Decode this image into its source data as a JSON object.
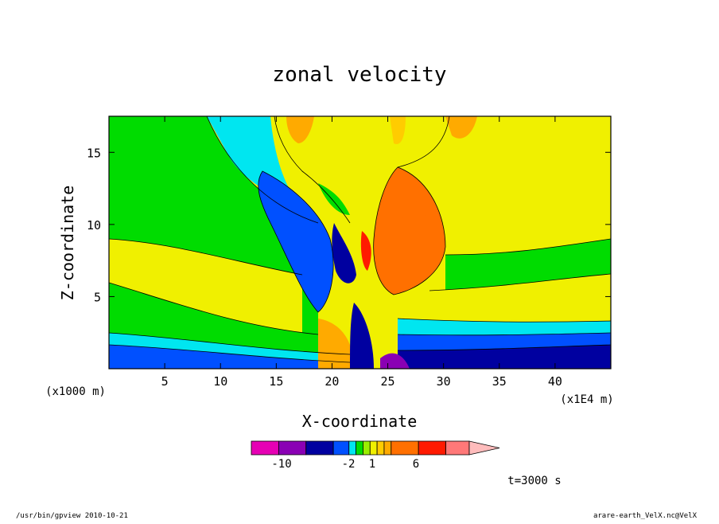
{
  "chart_data": {
    "type": "heatmap",
    "title": "zonal velocity",
    "xlabel": "X-coordinate",
    "ylabel": "Z-coordinate",
    "x_scale_note": "(x1E4 m)",
    "y_scale_note": "(x1000 m)",
    "xlim": [
      0,
      45
    ],
    "ylim": [
      0,
      17.5
    ],
    "x_ticks": [
      5,
      10,
      15,
      20,
      25,
      30,
      35,
      40
    ],
    "y_ticks": [
      5,
      10,
      15
    ],
    "colorbar": {
      "labels": [
        {
          "text": "-10",
          "value": -10
        },
        {
          "text": "-2",
          "value": -2
        },
        {
          "text": "1",
          "value": 1
        },
        {
          "text": "6",
          "value": 6
        }
      ],
      "bins": [
        {
          "color": "#e600b4"
        },
        {
          "color": "#8a00b4"
        },
        {
          "color": "#0000a0"
        },
        {
          "color": "#0050ff"
        },
        {
          "color": "#00e6f0"
        },
        {
          "color": "#00dc00"
        },
        {
          "color": "#9aee00"
        },
        {
          "color": "#f0f000"
        },
        {
          "color": "#ffcc00"
        },
        {
          "color": "#ffaa00"
        },
        {
          "color": "#ff7000"
        },
        {
          "color": "#ff1a00"
        },
        {
          "color": "#ff7878"
        },
        {
          "color": "#ffbcbc"
        }
      ]
    },
    "time_label": "t=3000 s"
  },
  "footer": {
    "left": "/usr/bin/gpview   2010-10-21",
    "right": "arare-earth_VelX.nc@VelX"
  }
}
